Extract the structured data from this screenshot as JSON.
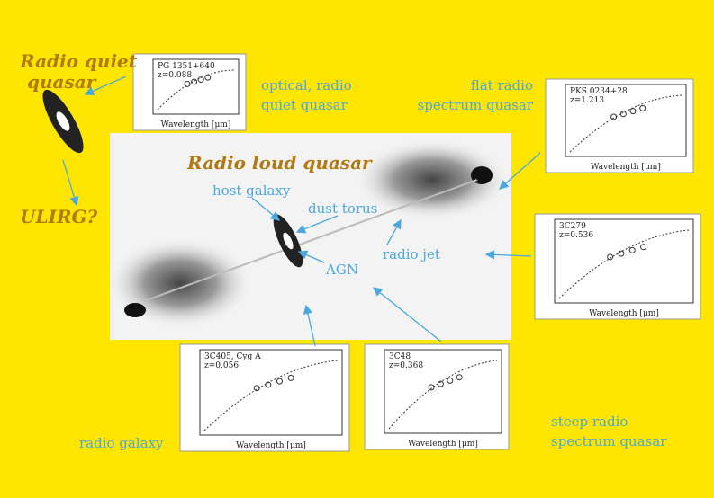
{
  "labels": {
    "radio_quiet_quasar": [
      "Radio quiet",
      "quasar"
    ],
    "ulirg": "ULIRG?",
    "optical_radio_quiet": [
      "optical, radio",
      "quiet quasar"
    ],
    "flat_radio": [
      "flat radio",
      "spectrum quasar"
    ],
    "radio_loud_quasar": "Radio loud quasar",
    "host_galaxy": "host galaxy",
    "dust_torus": "dust torus",
    "radio_jet": "radio jet",
    "agn": "AGN",
    "radio_galaxy": "radio galaxy",
    "steep_radio": [
      "steep radio",
      "spectrum quasar"
    ]
  },
  "insets": [
    {
      "name": "PG 1351+640",
      "z": "z=0.088",
      "xlabel": "Wavelength [μm]"
    },
    {
      "name": "PKS 0234+28",
      "z": "z=1.213",
      "xlabel": "Wavelength [μm]"
    },
    {
      "name": "3C279",
      "z": "z=0.536",
      "xlabel": "Wavelength [μm]"
    },
    {
      "name": "3C405, Cyg A",
      "z": "z=0.056",
      "xlabel": "Wavelength [μm]"
    },
    {
      "name": "3C48",
      "z": "z=0.368",
      "xlabel": "Wavelength [μm]"
    }
  ]
}
